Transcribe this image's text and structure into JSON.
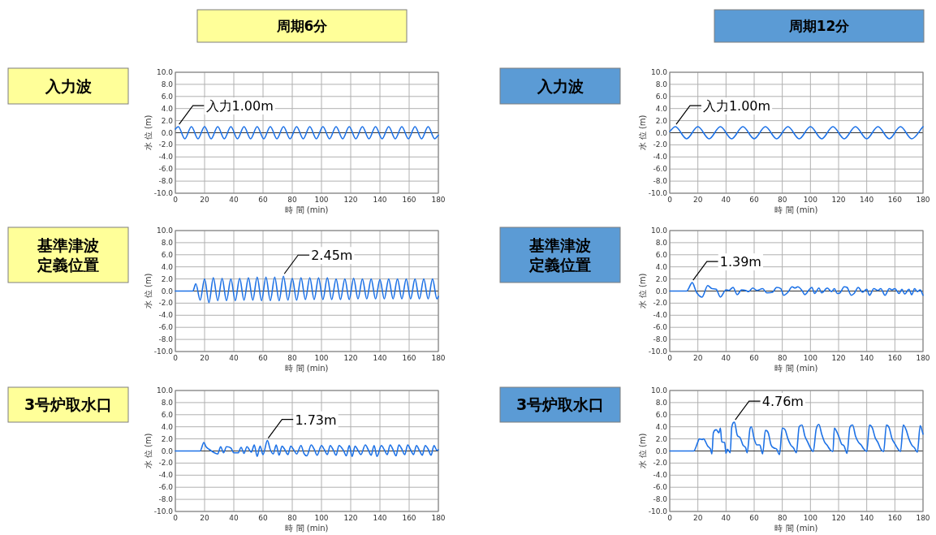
{
  "chart_data": [
    {
      "type": "other",
      "title": "周期6分"
    },
    {
      "type": "other",
      "title": "周期12分"
    },
    {
      "type": "line",
      "title": "入力波",
      "xlabel": "時 間 (min)",
      "ylabel": "水 位 (m)",
      "color": "#1e72e6",
      "grid": true,
      "xlim": [
        0,
        180
      ],
      "ylim": [
        -10,
        10
      ],
      "xticks": [
        0,
        20,
        40,
        60,
        80,
        100,
        120,
        140,
        160,
        180
      ],
      "yticks": [
        {
          "value": -10,
          "label": "-10.0"
        },
        {
          "value": -8,
          "label": "-8.0"
        },
        {
          "value": -6,
          "label": "-6.0"
        },
        {
          "value": -4,
          "label": "-4.0"
        },
        {
          "value": -2,
          "label": "-2.0"
        },
        {
          "value": 0,
          "label": "0.0"
        },
        {
          "value": 2,
          "label": "2.0"
        },
        {
          "value": 4,
          "label": "4.0"
        },
        {
          "value": 6,
          "label": "6.0"
        },
        {
          "value": 8,
          "label": "8.0"
        },
        {
          "value": 10,
          "label": "10.0"
        }
      ],
      "annotations": [
        {
          "text": "入力1.00m",
          "x": 2,
          "y": 1
        }
      ],
      "x": [
        0,
        2,
        6.5,
        11,
        15.5,
        20,
        24.5,
        29,
        33.5,
        38,
        42.5,
        47,
        51.5,
        56,
        60.5,
        65,
        69.5,
        74,
        78.5,
        83,
        87.5,
        92,
        96.5,
        101,
        105.5,
        110,
        114.5,
        119,
        123.5,
        128,
        132.5,
        137,
        141.5,
        146,
        150.5,
        155,
        159.5,
        164,
        168.5,
        173,
        177.5,
        180
      ],
      "values": [
        0.6,
        1,
        -1,
        1,
        -1,
        1,
        -1,
        1,
        -1,
        1,
        -1,
        1,
        -1,
        1,
        -1,
        1,
        -1,
        1,
        -1,
        1,
        -1,
        1,
        -1,
        1,
        -1,
        1,
        -1,
        1,
        -1,
        1,
        -1,
        1,
        -1,
        1,
        -1,
        1,
        -1,
        1,
        -1,
        1,
        -1,
        -0.4
      ]
    },
    {
      "type": "line",
      "title": "入力波",
      "xlabel": "時 間 (min)",
      "ylabel": "水 位 (m)",
      "color": "#1e72e6",
      "grid": true,
      "xlim": [
        0,
        180
      ],
      "ylim": [
        -10,
        10
      ],
      "xticks": [
        0,
        20,
        40,
        60,
        80,
        100,
        120,
        140,
        160,
        180
      ],
      "yticks": [
        {
          "value": -10,
          "label": "-10.0"
        },
        {
          "value": -8,
          "label": "-8.0"
        },
        {
          "value": -6,
          "label": "-6.0"
        },
        {
          "value": -4,
          "label": "-4.0"
        },
        {
          "value": -2,
          "label": "-2.0"
        },
        {
          "value": 0,
          "label": "0.0"
        },
        {
          "value": 2,
          "label": "2.0"
        },
        {
          "value": 4,
          "label": "4.0"
        },
        {
          "value": 6,
          "label": "6.0"
        },
        {
          "value": 8,
          "label": "8.0"
        },
        {
          "value": 10,
          "label": "10.0"
        }
      ],
      "annotations": [
        {
          "text": "入力1.00m",
          "x": 4,
          "y": 1
        }
      ],
      "x": [
        0,
        4,
        12,
        20,
        28,
        36,
        44,
        52,
        60,
        68,
        76,
        84,
        92,
        100,
        108,
        116,
        124,
        132,
        140,
        148,
        156,
        164,
        172,
        180
      ],
      "values": [
        0.2,
        1,
        -1,
        1,
        -1,
        1,
        -1,
        1,
        -1,
        1,
        -1,
        1,
        -1,
        1,
        -1,
        1,
        -1,
        1,
        -1,
        1,
        -1,
        1,
        -1,
        1
      ]
    },
    {
      "type": "line",
      "title": "基準津波定義位置",
      "xlabel": "時 間 (min)",
      "ylabel": "水 位 (m)",
      "color": "#1e72e6",
      "grid": true,
      "xlim": [
        0,
        180
      ],
      "ylim": [
        -10,
        10
      ],
      "xticks": [
        0,
        20,
        40,
        60,
        80,
        100,
        120,
        140,
        160,
        180
      ],
      "yticks": [
        {
          "value": -10,
          "label": "-10.0"
        },
        {
          "value": -8,
          "label": "-8.0"
        },
        {
          "value": -6,
          "label": "-6.0"
        },
        {
          "value": -4,
          "label": "-4.0"
        },
        {
          "value": -2,
          "label": "-2.0"
        },
        {
          "value": 0,
          "label": "0.0"
        },
        {
          "value": 2,
          "label": "2.0"
        },
        {
          "value": 4,
          "label": "4.0"
        },
        {
          "value": 6,
          "label": "6.0"
        },
        {
          "value": 8,
          "label": "8.0"
        },
        {
          "value": 10,
          "label": "10.0"
        }
      ],
      "annotations": [
        {
          "text": "2.45m",
          "x": 74,
          "y": 2.45
        }
      ],
      "x": [
        0,
        12,
        14,
        17,
        20,
        23,
        26,
        29,
        32,
        35,
        38,
        41,
        44,
        47,
        50,
        53,
        56,
        59,
        62,
        65,
        68,
        71,
        74,
        77,
        80,
        83,
        86,
        89,
        92,
        95,
        98,
        101,
        104,
        107,
        110,
        113,
        116,
        119,
        122,
        125,
        128,
        131,
        134,
        137,
        140,
        143,
        146,
        149,
        152,
        155,
        158,
        161,
        164,
        167,
        170,
        173,
        176,
        179,
        180
      ],
      "values": [
        0,
        0,
        1.2,
        -1.5,
        2.0,
        -1.9,
        2.2,
        -1.6,
        2.1,
        -1.6,
        2.0,
        -1.6,
        2.1,
        -1.5,
        2.2,
        -1.5,
        2.3,
        -1.6,
        2.3,
        -1.6,
        2.3,
        -1.6,
        2.45,
        -1.5,
        2.1,
        -1.5,
        2.2,
        -1.4,
        2.2,
        -1.4,
        2.2,
        -1.4,
        2.2,
        -1.4,
        2.0,
        -1.4,
        2.0,
        -1.4,
        2.1,
        -1.3,
        2.0,
        -1.3,
        2.0,
        -1.3,
        1.9,
        -1.3,
        2.0,
        -1.3,
        2.0,
        -1.3,
        2.0,
        -1.3,
        2.0,
        -1.3,
        2.0,
        -1.3,
        2.0,
        -1.3,
        -0.9
      ]
    },
    {
      "type": "line",
      "title": "基準津波定義位置",
      "xlabel": "時 間 (min)",
      "ylabel": "水 位 (m)",
      "color": "#1e72e6",
      "grid": true,
      "xlim": [
        0,
        180
      ],
      "ylim": [
        -10,
        10
      ],
      "xticks": [
        0,
        20,
        40,
        60,
        80,
        100,
        120,
        140,
        160,
        180
      ],
      "yticks": [
        {
          "value": -10,
          "label": "-10.0"
        },
        {
          "value": -8,
          "label": "-8.0"
        },
        {
          "value": -6,
          "label": "-6.0"
        },
        {
          "value": -4,
          "label": "-4.0"
        },
        {
          "value": -2,
          "label": "-2.0"
        },
        {
          "value": 0,
          "label": "0.0"
        },
        {
          "value": 2,
          "label": "2.0"
        },
        {
          "value": 4,
          "label": "4.0"
        },
        {
          "value": 6,
          "label": "6.0"
        },
        {
          "value": 8,
          "label": "8.0"
        },
        {
          "value": 10,
          "label": "10.0"
        }
      ],
      "annotations": [
        {
          "text": "1.39m",
          "x": 16,
          "y": 1.39
        }
      ],
      "x": [
        0,
        12,
        16,
        19,
        23,
        27,
        30,
        33,
        36,
        40,
        42,
        45,
        48,
        51,
        54,
        56,
        59,
        62,
        66,
        69,
        73,
        76,
        79,
        81,
        84,
        87,
        89,
        91,
        94,
        96,
        99,
        101,
        103,
        106,
        108,
        112,
        115,
        117,
        119,
        121,
        124,
        126,
        129,
        131,
        134,
        137,
        140,
        142,
        145,
        148,
        150,
        153,
        156,
        158,
        160,
        163,
        165,
        167,
        170,
        172,
        174,
        176,
        178,
        180
      ],
      "values": [
        0,
        0,
        1.39,
        -0.2,
        -1.0,
        0.9,
        0.4,
        0.3,
        -1.0,
        0.2,
        0.1,
        0.6,
        -0.6,
        0.2,
        0.1,
        -0.1,
        0.5,
        0.1,
        0.4,
        -0.3,
        -0.2,
        0.6,
        0.4,
        -0.7,
        -0.2,
        0.7,
        0.5,
        0.7,
        0.1,
        -0.6,
        0.2,
        0.6,
        -0.4,
        0.5,
        -0.3,
        0.5,
        -0.1,
        0.4,
        -0.4,
        -0.3,
        0.7,
        0.6,
        -0.7,
        -0.4,
        0.6,
        -0.2,
        0.3,
        -0.7,
        0.4,
        0.1,
        0.4,
        -0.7,
        0.4,
        0.2,
        0.4,
        -0.4,
        0.3,
        -0.5,
        0.3,
        -0.6,
        0.4,
        -0.1,
        0.2,
        -0.7
      ]
    },
    {
      "type": "line",
      "title": "3号炉取水口",
      "xlabel": "時 間 (min)",
      "ylabel": "水 位 (m)",
      "color": "#1e72e6",
      "grid": true,
      "xlim": [
        0,
        180
      ],
      "ylim": [
        -10,
        10
      ],
      "xticks": [
        0,
        20,
        40,
        60,
        80,
        100,
        120,
        140,
        160,
        180
      ],
      "yticks": [
        {
          "value": -10,
          "label": "-10.0"
        },
        {
          "value": -8,
          "label": "-8.0"
        },
        {
          "value": -6,
          "label": "-6.0"
        },
        {
          "value": -4,
          "label": "-4.0"
        },
        {
          "value": -2,
          "label": "-2.0"
        },
        {
          "value": 0,
          "label": "0.0"
        },
        {
          "value": 2,
          "label": "2.0"
        },
        {
          "value": 4,
          "label": "4.0"
        },
        {
          "value": 6,
          "label": "6.0"
        },
        {
          "value": 8,
          "label": "8.0"
        },
        {
          "value": 10,
          "label": "10.0"
        }
      ],
      "annotations": [
        {
          "text": "1.73m",
          "x": 63,
          "y": 1.73
        }
      ],
      "x": [
        0,
        17,
        19.5,
        21,
        23,
        26,
        29,
        31,
        33,
        35,
        38,
        40,
        43,
        45,
        47,
        49,
        52,
        54,
        56,
        58,
        60,
        63,
        65,
        67,
        69,
        71,
        73,
        75,
        77,
        79,
        81,
        83,
        86,
        88,
        90,
        93,
        95,
        97,
        100,
        102,
        104,
        106,
        108,
        110,
        112,
        115,
        117,
        119,
        121,
        123,
        125,
        127,
        130,
        132,
        134,
        136,
        138,
        141,
        143,
        145,
        147,
        149,
        151,
        153,
        155,
        157,
        159,
        161,
        163,
        165,
        167,
        169,
        171,
        173,
        175,
        177,
        179,
        180
      ],
      "values": [
        0,
        0,
        1.4,
        0.7,
        0.3,
        -0.2,
        -0.5,
        0.7,
        -0.3,
        0.7,
        0.5,
        -0.3,
        -0.3,
        0.6,
        -0.4,
        0.7,
        -0.2,
        1.0,
        -0.9,
        0.8,
        -0.6,
        1.73,
        0.2,
        -0.5,
        1.0,
        -0.7,
        0.8,
        0.2,
        -0.6,
        0.8,
        0.2,
        -0.5,
        0.9,
        -0.4,
        -0.8,
        1.0,
        0.3,
        -0.7,
        0.9,
        0.2,
        -0.6,
        0.9,
        0.2,
        -0.7,
        0.9,
        0.1,
        -0.8,
        0.9,
        -0.9,
        0.8,
        0.1,
        -0.6,
        1.0,
        0.2,
        -0.7,
        0.9,
        -0.9,
        0.9,
        0.2,
        -0.6,
        1.0,
        0.2,
        -0.8,
        1.0,
        0.3,
        -0.6,
        1.0,
        0.2,
        -0.6,
        0.9,
        0.1,
        -0.7,
        0.9,
        0.3,
        -0.7,
        0.9,
        0.1,
        0.2
      ]
    },
    {
      "type": "line",
      "title": "3号炉取水口",
      "xlabel": "時 間 (min)",
      "ylabel": "水 位 (m)",
      "color": "#1e72e6",
      "grid": true,
      "xlim": [
        0,
        180
      ],
      "ylim": [
        -10,
        10
      ],
      "xticks": [
        0,
        20,
        40,
        60,
        80,
        100,
        120,
        140,
        160,
        180
      ],
      "yticks": [
        {
          "value": -10,
          "label": "-10.0"
        },
        {
          "value": -8,
          "label": "-8.0"
        },
        {
          "value": -6,
          "label": "-6.0"
        },
        {
          "value": -4,
          "label": "-4.0"
        },
        {
          "value": -2,
          "label": "-2.0"
        },
        {
          "value": 0,
          "label": "0.0"
        },
        {
          "value": 2,
          "label": "2.0"
        },
        {
          "value": 4,
          "label": "4.0"
        },
        {
          "value": 6,
          "label": "6.0"
        },
        {
          "value": 8,
          "label": "8.0"
        },
        {
          "value": 10,
          "label": "10.0"
        }
      ],
      "annotations": [
        {
          "text": "4.76m",
          "x": 46,
          "y": 4.76
        }
      ],
      "x": [
        0,
        17,
        20,
        21,
        23,
        24,
        27,
        29,
        30,
        31,
        33,
        35,
        36,
        37,
        39,
        40,
        41,
        43,
        44,
        46,
        48,
        50,
        52,
        54,
        55,
        57,
        58,
        60,
        62,
        64,
        66,
        68,
        70,
        72,
        74,
        76,
        78,
        80,
        82,
        84,
        86,
        88,
        90,
        92,
        94,
        96,
        98,
        100,
        102,
        104,
        106,
        108,
        110,
        112,
        114,
        116,
        117,
        118,
        120,
        122,
        124,
        126,
        128,
        130,
        132,
        134,
        136,
        138,
        140,
        142,
        144,
        146,
        148,
        150,
        152,
        154,
        156,
        158,
        160,
        162,
        164,
        166,
        168,
        170,
        172,
        174,
        176,
        178,
        180
      ],
      "values": [
        0,
        0,
        1.5,
        2.0,
        1.9,
        2.0,
        0.8,
        0.3,
        -0.5,
        3.0,
        3.5,
        3.0,
        3.8,
        1.5,
        1.4,
        -0.4,
        0.3,
        -0.3,
        3.8,
        4.76,
        2.6,
        2.2,
        1.0,
        0.5,
        -0.3,
        3.6,
        4.0,
        2.0,
        1.0,
        1.0,
        -0.5,
        3.4,
        3.0,
        1.0,
        0.5,
        0.3,
        -0.6,
        3.8,
        3.5,
        2.0,
        1.0,
        0.5,
        -0.3,
        4.0,
        4.3,
        2.5,
        1.5,
        0.5,
        -0.1,
        3.5,
        4.4,
        2.8,
        1.5,
        0.9,
        0.2,
        -0.1,
        3.8,
        3.5,
        2.5,
        1.2,
        0.8,
        -0.4,
        3.9,
        4.3,
        2.5,
        1.5,
        1.0,
        0.3,
        -0.1,
        4.3,
        3.8,
        2.2,
        1.4,
        0.3,
        -0.1,
        4.3,
        3.8,
        2.0,
        1.2,
        0.4,
        -0.1,
        4.3,
        3.5,
        2.0,
        1.0,
        0.5,
        -0.2,
        4.2,
        2.8
      ]
    }
  ]
}
